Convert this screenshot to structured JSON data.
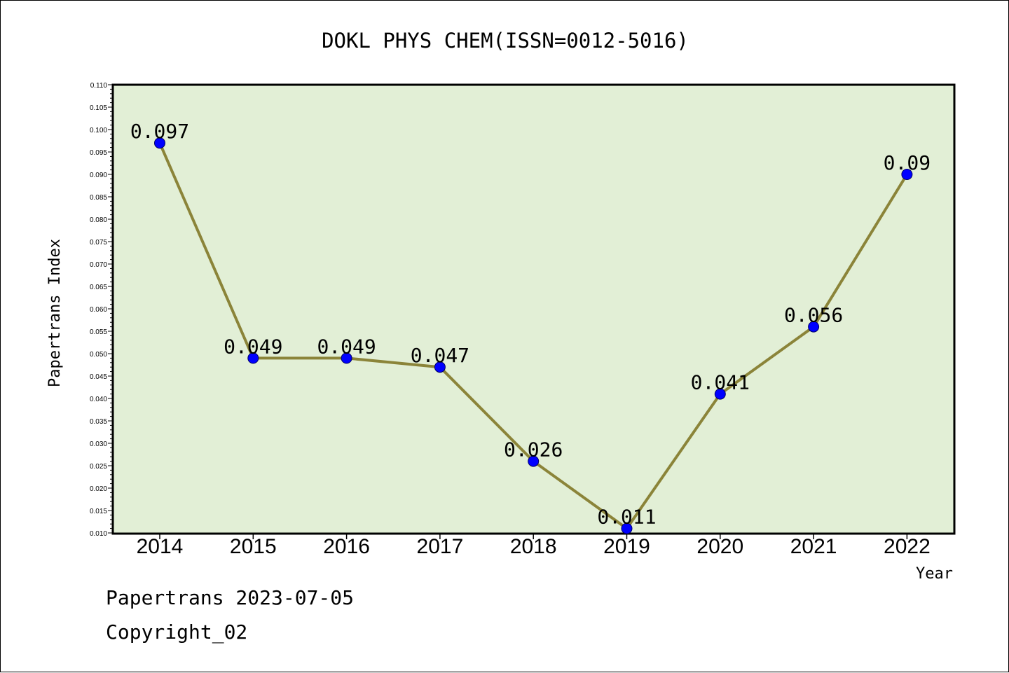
{
  "chart_data": {
    "type": "line",
    "title": "DOKL PHYS CHEM(ISSN=0012-5016)",
    "xlabel": "Year",
    "ylabel": "Papertrans Index",
    "categories": [
      "2014",
      "2015",
      "2016",
      "2017",
      "2018",
      "2019",
      "2020",
      "2021",
      "2022"
    ],
    "series": [
      {
        "values": [
          0.097,
          0.049,
          0.049,
          0.047,
          0.026,
          0.011,
          0.041,
          0.056,
          0.09
        ],
        "labels": [
          "0.097",
          "0.049",
          "0.049",
          "0.047",
          "0.026",
          "0.011",
          "0.041",
          "0.056",
          "0.09"
        ]
      }
    ],
    "ylim": [
      0.01,
      0.11
    ],
    "yticks": [
      "0.010",
      "0.015",
      "0.020",
      "0.025",
      "0.030",
      "0.035",
      "0.040",
      "0.045",
      "0.050",
      "0.055",
      "0.060",
      "0.065",
      "0.070",
      "0.075",
      "0.080",
      "0.085",
      "0.090",
      "0.095",
      "0.100",
      "0.105",
      "0.110"
    ],
    "grid": false,
    "legend": "none",
    "colors": {
      "plot_background": "#e2efd6",
      "line": "#8b8439",
      "marker": "#0000ff"
    }
  },
  "footer": {
    "date_text": "Papertrans 2023-07-05",
    "copyright_text": "Copyright_02"
  }
}
